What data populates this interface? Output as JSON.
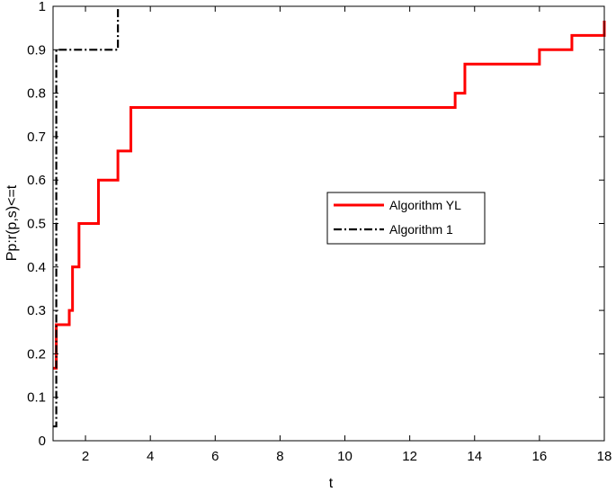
{
  "chart_data": {
    "type": "line",
    "title": "",
    "xlabel": "t",
    "ylabel": "Pp:r(p,s)<=t",
    "xlim": [
      1,
      18
    ],
    "ylim": [
      0,
      1
    ],
    "x_ticks": [
      2,
      4,
      6,
      8,
      10,
      12,
      14,
      16,
      18
    ],
    "y_ticks": [
      0,
      0.1,
      0.2,
      0.3,
      0.4,
      0.5,
      0.6,
      0.7,
      0.8,
      0.9,
      1
    ],
    "grid": false,
    "legend_position": "right-middle",
    "series": [
      {
        "name": "Algorithm YL",
        "color": "#ff0000",
        "style": "solid",
        "step": true,
        "x": [
          1.0,
          1.1,
          1.5,
          1.6,
          1.8,
          2.4,
          3.0,
          3.4,
          13.4,
          13.7,
          16.0,
          17.0,
          18.0
        ],
        "y": [
          0.167,
          0.267,
          0.3,
          0.4,
          0.5,
          0.6,
          0.667,
          0.767,
          0.8,
          0.867,
          0.9,
          0.933,
          0.967
        ]
      },
      {
        "name": "Algorithm 1",
        "color": "#000000",
        "style": "dashdot",
        "step": true,
        "x": [
          1.0,
          1.1,
          3.0
        ],
        "y": [
          0.033,
          0.9,
          1.0
        ]
      }
    ]
  }
}
